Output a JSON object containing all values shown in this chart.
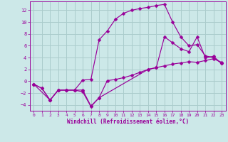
{
  "background_color": "#cce8e8",
  "grid_color": "#aacccc",
  "line_color": "#990099",
  "xlabel": "Windchill (Refroidissement éolien,°C)",
  "xlim": [
    -0.5,
    23.5
  ],
  "ylim": [
    -5,
    13.5
  ],
  "yticks": [
    -4,
    -2,
    0,
    2,
    4,
    6,
    8,
    10,
    12
  ],
  "xticks": [
    0,
    1,
    2,
    3,
    4,
    5,
    6,
    7,
    8,
    9,
    10,
    11,
    12,
    13,
    14,
    15,
    16,
    17,
    18,
    19,
    20,
    21,
    22,
    23
  ],
  "line_upper_x": [
    0,
    1,
    2,
    3,
    4,
    5,
    6,
    7,
    8,
    9,
    10,
    11,
    12,
    13,
    14,
    15,
    16,
    17,
    18,
    19,
    20,
    21,
    22,
    23
  ],
  "line_upper_y": [
    -0.5,
    -1.2,
    -3.2,
    -1.5,
    -1.5,
    -1.5,
    0.2,
    0.3,
    7.0,
    8.5,
    10.5,
    11.5,
    12.0,
    12.3,
    12.5,
    12.8,
    13.0,
    10.0,
    7.5,
    6.0,
    6.2,
    4.3,
    4.0,
    3.0
  ],
  "line_lower_x": [
    0,
    1,
    2,
    3,
    4,
    5,
    6,
    7,
    8,
    9,
    10,
    11,
    12,
    13,
    14,
    15,
    16,
    17,
    18,
    19,
    20,
    21,
    22,
    23
  ],
  "line_lower_y": [
    -0.5,
    -1.2,
    -3.2,
    -1.5,
    -1.5,
    -1.5,
    -1.5,
    -4.2,
    -2.8,
    0.1,
    0.3,
    0.6,
    1.0,
    1.5,
    2.0,
    2.3,
    2.6,
    2.9,
    3.1,
    3.3,
    3.2,
    3.5,
    3.8,
    3.2
  ],
  "line_mid_x": [
    0,
    2,
    3,
    4,
    5,
    6,
    7,
    8,
    14,
    15,
    16,
    17,
    18,
    19,
    20,
    21,
    22,
    23
  ],
  "line_mid_y": [
    -0.5,
    -3.2,
    -1.5,
    -1.5,
    -1.5,
    -1.8,
    -4.3,
    -2.8,
    2.0,
    2.3,
    7.5,
    6.5,
    5.5,
    5.0,
    7.5,
    4.0,
    4.2,
    3.0
  ]
}
